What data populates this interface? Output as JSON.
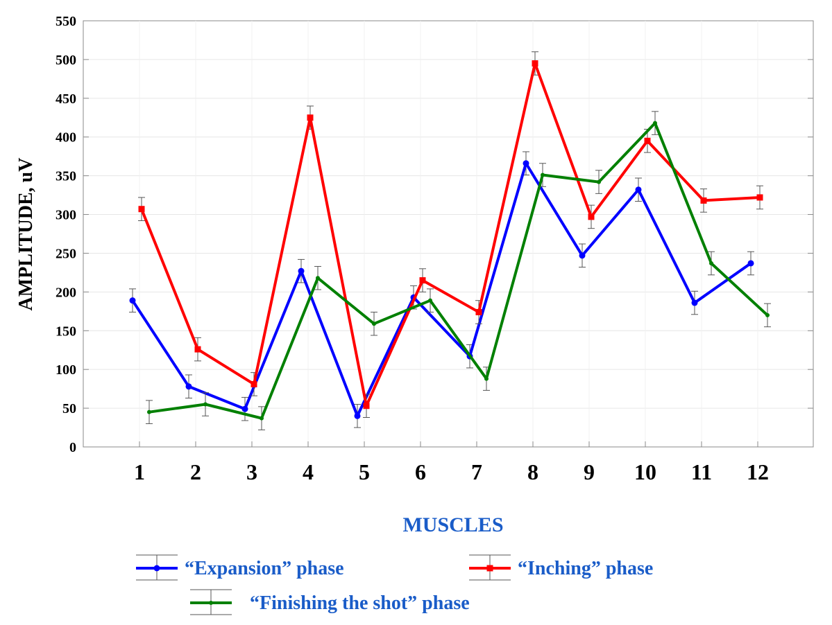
{
  "chart_data": {
    "type": "line",
    "title": "",
    "xlabel": "MUSCLES",
    "ylabel": "AMPLITUDE, uV",
    "ylim": [
      0,
      550
    ],
    "yticks": [
      0,
      50,
      100,
      150,
      200,
      250,
      300,
      350,
      400,
      450,
      500,
      550
    ],
    "categories": [
      "1",
      "2",
      "3",
      "4",
      "5",
      "6",
      "7",
      "8",
      "9",
      "10",
      "11",
      "12"
    ],
    "grid": true,
    "legend_position": "bottom",
    "error_bars": true,
    "series": [
      {
        "name": "“Expansion” phase",
        "color": "#0000ff",
        "marker": "circle",
        "values": [
          189,
          78,
          49,
          227,
          40,
          193,
          117,
          366,
          247,
          332,
          186,
          237
        ],
        "error": [
          15,
          15,
          15,
          15,
          15,
          15,
          15,
          15,
          15,
          15,
          15,
          15
        ]
      },
      {
        "name": "“Inching” phase",
        "color": "#ff0000",
        "marker": "square",
        "values": [
          307,
          126,
          81,
          425,
          53,
          215,
          174,
          495,
          297,
          395,
          318,
          322
        ],
        "error": [
          15,
          15,
          15,
          15,
          15,
          15,
          15,
          15,
          15,
          15,
          15,
          15
        ]
      },
      {
        "name": "“Finishing the shot” phase",
        "color": "#008000",
        "marker": "diamond",
        "values": [
          45,
          55,
          37,
          218,
          159,
          189,
          88,
          351,
          342,
          418,
          237,
          170
        ],
        "error": [
          15,
          15,
          15,
          15,
          15,
          15,
          15,
          15,
          15,
          15,
          15,
          15
        ]
      }
    ]
  }
}
